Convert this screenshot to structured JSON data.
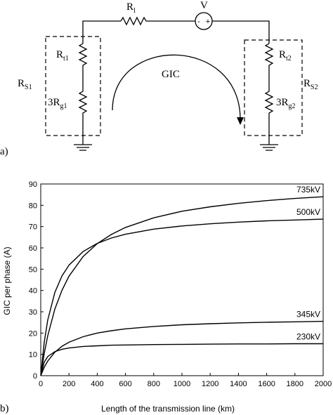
{
  "panel_labels": [
    "a)",
    "b)"
  ],
  "diagram": {
    "labels": [
      {
        "main": "R",
        "sub": "l"
      },
      {
        "main": "V",
        "sub": ""
      },
      {
        "main": "R",
        "sub": "t1"
      },
      {
        "main": "3R",
        "sub": "g1"
      },
      {
        "main": "R",
        "sub": "S1"
      },
      {
        "main": "R",
        "sub": "t2"
      },
      {
        "main": "3R",
        "sub": "g2"
      },
      {
        "main": "R",
        "sub": "S2"
      },
      {
        "main": "GIC",
        "sub": ""
      }
    ],
    "source_signs": [
      "-",
      "+"
    ]
  },
  "chart_data": {
    "type": "line",
    "x_label": "Length of the transmission line (km)",
    "y_label": "GIC per phase (A)",
    "x": [
      0,
      25,
      50,
      100,
      150,
      200,
      300,
      400,
      500,
      600,
      800,
      1000,
      1200,
      1400,
      1600,
      1800,
      2000
    ],
    "series": [
      {
        "name": "735kV",
        "color": "#000000",
        "values": [
          0,
          10.5,
          18.8,
          31.3,
          40.1,
          46.7,
          55.9,
          62.0,
          66.3,
          69.6,
          74.1,
          77.2,
          79.3,
          80.9,
          82.2,
          83.2,
          84.0
        ]
      },
      {
        "name": "500kV",
        "color": "#000000",
        "values": [
          0,
          15.8,
          26.2,
          39.1,
          46.8,
          51.9,
          58.3,
          62.1,
          64.6,
          66.4,
          68.8,
          70.3,
          71.3,
          72.1,
          72.7,
          73.1,
          73.5
        ]
      },
      {
        "name": "345kV",
        "color": "#000000",
        "values": [
          0,
          4.0,
          6.9,
          11.0,
          13.8,
          15.7,
          18.3,
          20.0,
          21.1,
          22.0,
          23.1,
          23.9,
          24.4,
          24.8,
          25.1,
          25.3,
          25.5
        ]
      },
      {
        "name": "230kV",
        "color": "#000000",
        "values": [
          0,
          6.4,
          9.0,
          11.3,
          12.4,
          13.0,
          13.7,
          14.0,
          14.3,
          14.4,
          14.6,
          14.7,
          14.8,
          14.9,
          14.9,
          15.0,
          15.0
        ]
      }
    ],
    "xlim": [
      0,
      2000
    ],
    "xticks": [
      0,
      200,
      400,
      600,
      800,
      1000,
      1200,
      1400,
      1600,
      1800,
      2000
    ],
    "ylim": [
      0,
      90
    ],
    "yticks": [
      0,
      10,
      20,
      30,
      40,
      50,
      60,
      70,
      80,
      90
    ]
  }
}
